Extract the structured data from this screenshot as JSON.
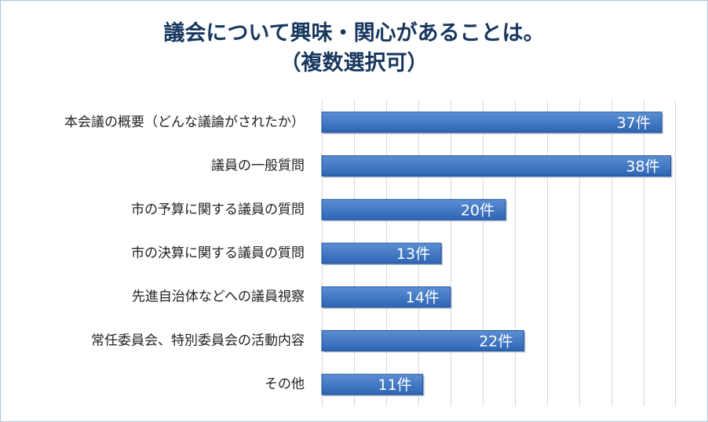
{
  "chart_data": {
    "type": "bar",
    "orientation": "horizontal",
    "title": [
      "議会について興味・関心があることは。",
      "（複数選択可）"
    ],
    "categories": [
      "本会議の概要（どんな議論がされたか）",
      "議員の一般質問",
      "市の予算に関する議員の質問",
      "市の決算に関する議員の質問",
      "先進自治体などへの議員視察",
      "常任委員会、特別委員会の活動内容",
      "その他"
    ],
    "values": [
      37,
      38,
      20,
      13,
      14,
      22,
      11
    ],
    "value_suffix": "件",
    "xlim": [
      0,
      40
    ],
    "grid": true,
    "legend": "none",
    "colors": {
      "bar_top": "#5b8fd4",
      "bar_bottom": "#2e64b3",
      "bar_edge": "#1f4f96",
      "title": "#17375e",
      "grid": "#d9d9d9"
    }
  }
}
